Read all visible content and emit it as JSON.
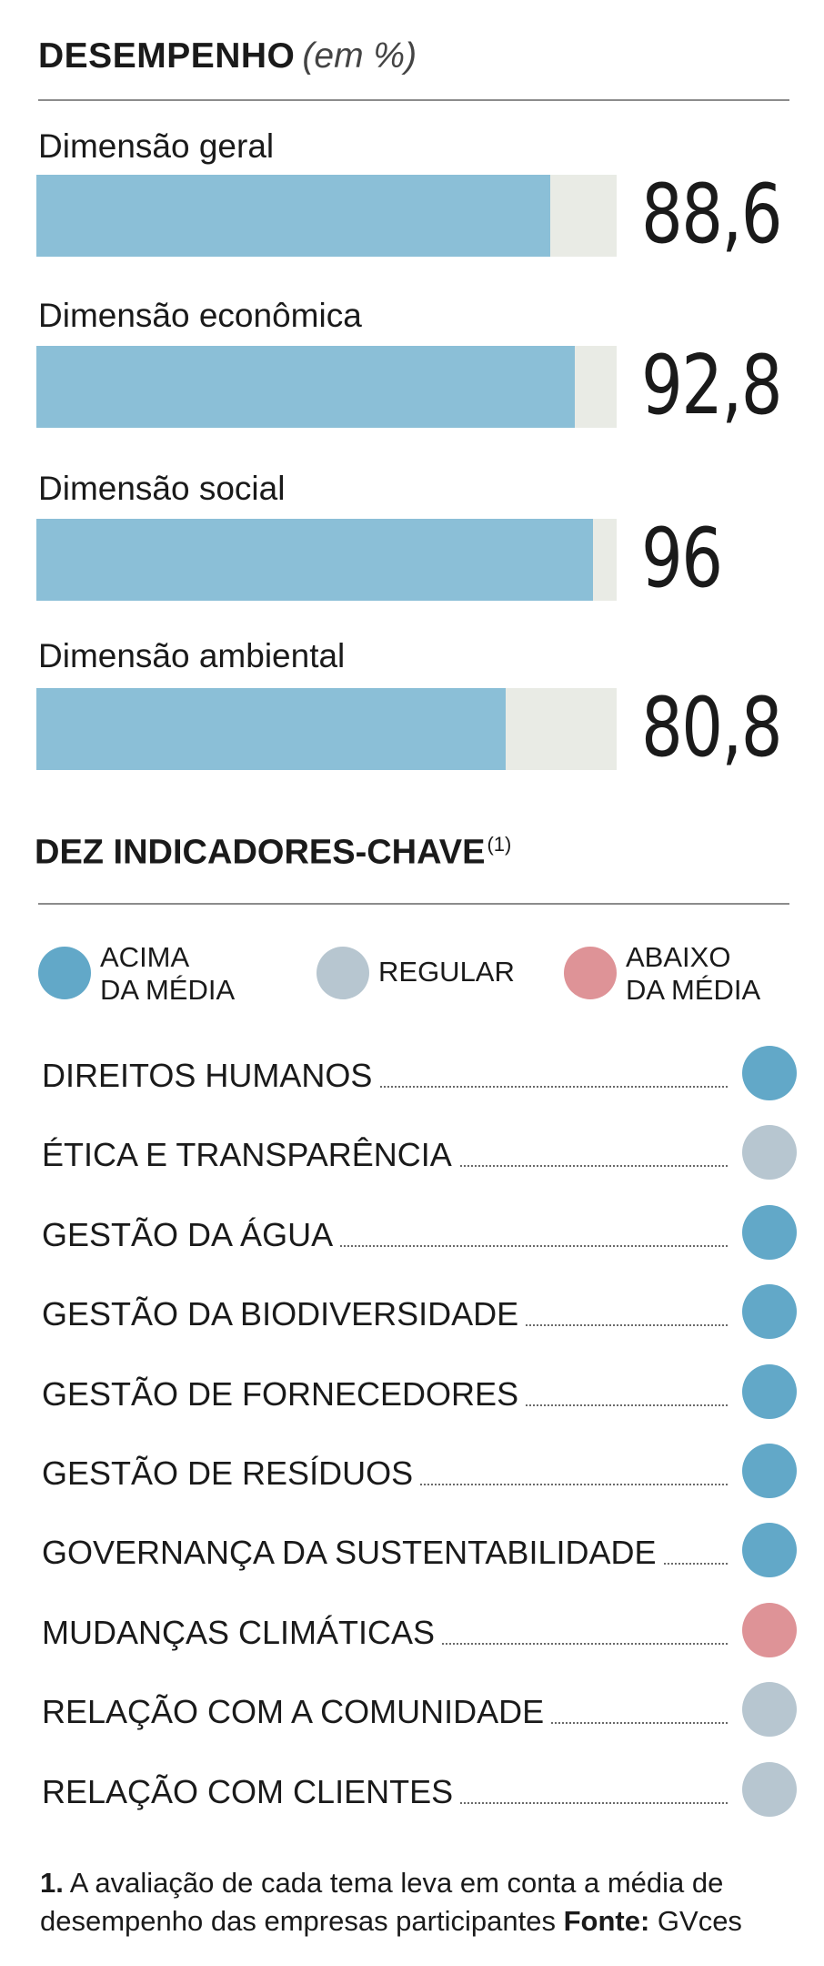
{
  "header": {
    "title": "DESEMPENHO",
    "subtitle": "(em %)"
  },
  "chart_data": {
    "type": "bar",
    "orientation": "horizontal",
    "title": "DESEMPENHO (em %)",
    "categories": [
      "Dimensão geral",
      "Dimensão econômica",
      "Dimensão social",
      "Dimensão ambiental"
    ],
    "values": [
      88.6,
      92.8,
      96,
      80.8
    ],
    "value_labels": [
      "88,6",
      "92,8",
      "96",
      "80,8"
    ],
    "xlim": [
      0,
      100
    ],
    "unit": "%",
    "bar_color": "#8bbfd7",
    "track_color": "#e9ebe5"
  },
  "indicators": {
    "title": "DEZ INDICADORES-CHAVE",
    "title_note": "(1)",
    "legend": [
      {
        "key": "acima",
        "line1": "ACIMA",
        "line2": "DA MÉDIA",
        "color": "#62a8c8"
      },
      {
        "key": "regular",
        "line1": "REGULAR",
        "line2": "",
        "color": "#b7c6d0"
      },
      {
        "key": "abaixo",
        "line1": "ABAIXO",
        "line2": "DA MÉDIA",
        "color": "#de9397"
      }
    ],
    "items": [
      {
        "label": "DIREITOS HUMANOS",
        "status": "acima"
      },
      {
        "label": "ÉTICA E TRANSPARÊNCIA",
        "status": "regular"
      },
      {
        "label": "GESTÃO DA ÁGUA",
        "status": "acima"
      },
      {
        "label": "GESTÃO DA BIODIVERSIDADE",
        "status": "acima"
      },
      {
        "label": "GESTÃO DE FORNECEDORES",
        "status": "acima"
      },
      {
        "label": "GESTÃO DE RESÍDUOS",
        "status": "acima"
      },
      {
        "label": "GOVERNANÇA DA SUSTENTABILIDADE",
        "status": "acima"
      },
      {
        "label": "MUDANÇAS CLIMÁTICAS",
        "status": "abaixo"
      },
      {
        "label": "RELAÇÃO COM A COMUNIDADE",
        "status": "regular"
      },
      {
        "label": "RELAÇÃO COM CLIENTES",
        "status": "regular"
      }
    ]
  },
  "footnote": {
    "number": "1.",
    "text": "A avaliação de cada tema leva em conta a média de desempenho das empresas participantes",
    "source_label": "Fonte:",
    "source": "GVces"
  }
}
